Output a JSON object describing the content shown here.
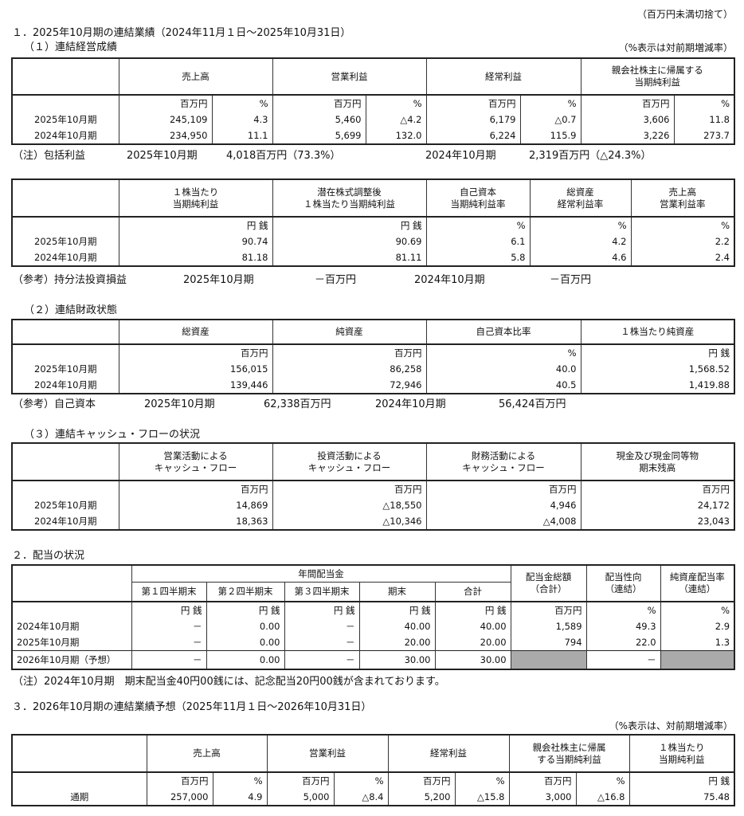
{
  "unit_note": "（百万円未満切捨て）",
  "s1": {
    "title": "１．2025年10月期の連結業績（2024年11月１日～2025年10月31日）",
    "results": {
      "title": "（１）連結経営成績",
      "note": "（%表示は対前期増減率）",
      "headers": [
        "売上高",
        "営業利益",
        "経常利益",
        "親会社株主に帰属する\n当期純利益"
      ],
      "units": [
        "百万円",
        "%",
        "百万円",
        "%",
        "百万円",
        "%",
        "百万円",
        "%"
      ],
      "rows": [
        {
          "label": "2025年10月期",
          "values": [
            "245,109",
            "4.3",
            "5,460",
            "△4.2",
            "6,179",
            "△0.7",
            "3,606",
            "11.8"
          ]
        },
        {
          "label": "2024年10月期",
          "values": [
            "234,950",
            "11.1",
            "5,699",
            "132.0",
            "6,224",
            "115.9",
            "3,226",
            "273.7"
          ]
        }
      ]
    },
    "comprehensive": {
      "items": [
        "（注）包括利益",
        "2025年10月期",
        "4,018百万円（73.3%）",
        "2024年10月期",
        "2,319百万円（△24.3%）"
      ]
    },
    "per_share": {
      "headers": [
        "１株当たり\n当期純利益",
        "潜在株式調整後\n１株当たり当期純利益",
        "自己資本\n当期純利益率",
        "総資産\n経常利益率",
        "売上高\n営業利益率"
      ],
      "units": [
        "円 銭",
        "円 銭",
        "%",
        "%",
        "%"
      ],
      "rows": [
        {
          "label": "2025年10月期",
          "values": [
            "90.74",
            "90.69",
            "6.1",
            "4.2",
            "2.2"
          ]
        },
        {
          "label": "2024年10月期",
          "values": [
            "81.18",
            "81.11",
            "5.8",
            "4.6",
            "2.4"
          ]
        }
      ]
    },
    "equity_method": {
      "items": [
        "（参考）持分法投資損益",
        "2025年10月期",
        "－百万円",
        "2024年10月期",
        "－百万円"
      ]
    },
    "financial": {
      "title": "（２）連結財政状態",
      "headers": [
        "総資産",
        "純資産",
        "自己資本比率",
        "１株当たり純資産"
      ],
      "units": [
        "百万円",
        "百万円",
        "%",
        "円 銭"
      ],
      "rows": [
        {
          "label": "2025年10月期",
          "values": [
            "156,015",
            "86,258",
            "40.0",
            "1,568.52"
          ]
        },
        {
          "label": "2024年10月期",
          "values": [
            "139,446",
            "72,946",
            "40.5",
            "1,419.88"
          ]
        }
      ]
    },
    "equity": {
      "items": [
        "（参考）自己資本",
        "2025年10月期",
        "62,338百万円",
        "2024年10月期",
        "56,424百万円"
      ]
    },
    "cashflow": {
      "title": "（３）連結キャッシュ・フローの状況",
      "headers": [
        "営業活動による\nキャッシュ・フロー",
        "投資活動による\nキャッシュ・フロー",
        "財務活動による\nキャッシュ・フロー",
        "現金及び現金同等物\n期末残高"
      ],
      "units": [
        "百万円",
        "百万円",
        "百万円",
        "百万円"
      ],
      "rows": [
        {
          "label": "2025年10月期",
          "values": [
            "14,869",
            "△18,550",
            "4,946",
            "24,172"
          ]
        },
        {
          "label": "2024年10月期",
          "values": [
            "18,363",
            "△10,346",
            "△4,008",
            "23,043"
          ]
        }
      ]
    }
  },
  "s2": {
    "title": "２．配当の状況",
    "dividends": {
      "group_header": "年間配当金",
      "headers": [
        "第１四半期末",
        "第２四半期末",
        "第３四半期末",
        "期末",
        "合計",
        "配当金総額\n（合計）",
        "配当性向\n（連結）",
        "純資産配当率\n（連結）"
      ],
      "units": [
        "円 銭",
        "円 銭",
        "円 銭",
        "円 銭",
        "円 銭",
        "百万円",
        "%",
        "%"
      ],
      "rows": [
        {
          "label": "2024年10月期",
          "values": [
            "－",
            "0.00",
            "－",
            "40.00",
            "40.00",
            "1,589",
            "49.3",
            "2.9"
          ]
        },
        {
          "label": "2025年10月期",
          "values": [
            "－",
            "0.00",
            "－",
            "20.00",
            "20.00",
            "794",
            "22.0",
            "1.3"
          ]
        },
        {
          "label": "2026年10月期（予想）",
          "values": [
            "－",
            "0.00",
            "－",
            "30.00",
            "30.00",
            null,
            "－",
            null
          ]
        }
      ]
    },
    "note": "（注）2024年10月期　期末配当金40円00銭には、記念配当20円00銭が含まれております。"
  },
  "s3": {
    "title": "３．2026年10月期の連結業績予想（2025年11月１日～2026年10月31日）",
    "note": "（%表示は、対前期増減率）",
    "forecast": {
      "headers": [
        "売上高",
        "営業利益",
        "経常利益",
        "親会社株主に帰属\nする当期純利益",
        "１株当たり\n当期純利益"
      ],
      "units": [
        "百万円",
        "%",
        "百万円",
        "%",
        "百万円",
        "%",
        "百万円",
        "%",
        "円 銭"
      ],
      "rows": [
        {
          "label": "通期",
          "values": [
            "257,000",
            "4.9",
            "5,000",
            "△8.4",
            "5,200",
            "△15.8",
            "3,000",
            "△16.8",
            "75.48"
          ]
        }
      ]
    }
  }
}
